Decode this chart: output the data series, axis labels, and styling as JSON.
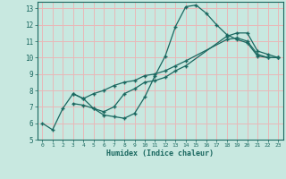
{
  "background_color": "#c8e8e0",
  "grid_color": "#e8b8b8",
  "line_color": "#1a6860",
  "xlabel": "Humidex (Indice chaleur)",
  "xlim": [
    -0.5,
    23.5
  ],
  "ylim": [
    5,
    13.4
  ],
  "xticks": [
    0,
    1,
    2,
    3,
    4,
    5,
    6,
    7,
    8,
    9,
    10,
    11,
    12,
    13,
    14,
    15,
    16,
    17,
    18,
    19,
    20,
    21,
    22,
    23
  ],
  "yticks": [
    5,
    6,
    7,
    8,
    9,
    10,
    11,
    12,
    13
  ],
  "series1_x": [
    0,
    1,
    2,
    3,
    4,
    5,
    6,
    7,
    8,
    9,
    10,
    11,
    12,
    13,
    14,
    15,
    16,
    17,
    18,
    19,
    20,
    21,
    22,
    23
  ],
  "series1_y": [
    6.0,
    5.6,
    6.9,
    7.8,
    7.5,
    6.9,
    6.5,
    6.4,
    6.3,
    6.6,
    7.6,
    8.9,
    10.1,
    11.9,
    13.1,
    13.2,
    12.7,
    12.0,
    11.4,
    11.1,
    10.9,
    10.1,
    10.0,
    10.0
  ],
  "series2_x": [
    3,
    4,
    5,
    6,
    7,
    8,
    9,
    10,
    11,
    12,
    13,
    14,
    18,
    19,
    20,
    21,
    22,
    23
  ],
  "series2_y": [
    7.8,
    7.5,
    7.8,
    8.0,
    8.3,
    8.5,
    8.6,
    8.9,
    9.0,
    9.2,
    9.5,
    9.8,
    11.1,
    11.2,
    11.0,
    10.2,
    10.0,
    10.0
  ],
  "series3_x": [
    3,
    4,
    5,
    6,
    7,
    8,
    9,
    10,
    11,
    12,
    13,
    14,
    18,
    19,
    20,
    21,
    22,
    23
  ],
  "series3_y": [
    7.2,
    7.1,
    6.9,
    6.7,
    7.0,
    7.8,
    8.1,
    8.5,
    8.6,
    8.8,
    9.2,
    9.5,
    11.3,
    11.5,
    11.5,
    10.4,
    10.2,
    10.0
  ]
}
